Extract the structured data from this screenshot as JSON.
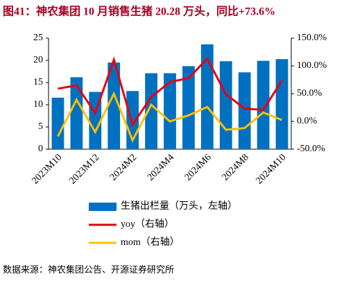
{
  "chart_data": {
    "type": "bar",
    "title": "图41：神农集团 10 月销售生猪 20.28 万头，同比+73.6%",
    "source": "数据来源：神农集团公告、开源证券研究所",
    "categories": [
      "2023M10",
      null,
      "2023M12",
      null,
      "2024M2",
      null,
      "2024M4",
      null,
      "2024M6",
      null,
      "2024M8",
      null,
      "2024M10"
    ],
    "series": [
      {
        "name": "生猪出栏量（万头，左轴）",
        "type": "bar",
        "axis": "y",
        "color": "#0070c0",
        "values": [
          11.6,
          16.2,
          12.9,
          19.5,
          13.1,
          17.1,
          17.1,
          18.7,
          23.6,
          19.8,
          17.3,
          19.9,
          20.28
        ]
      },
      {
        "name": "yoy（右轴）",
        "type": "line",
        "axis": "y2",
        "color": "#e60012",
        "values": [
          59,
          65,
          15,
          111,
          -6,
          44,
          71,
          78,
          113,
          49,
          23,
          21,
          73.6
        ]
      },
      {
        "name": "mom（右轴）",
        "type": "line",
        "axis": "y2",
        "color": "#ffc000",
        "values": [
          -27,
          39,
          -19,
          50,
          -34,
          30,
          0,
          11,
          26,
          -15,
          -12,
          16,
          2.5
        ]
      }
    ],
    "ylim": [
      0,
      25
    ],
    "yticks": [
      0,
      5,
      10,
      15,
      20,
      25
    ],
    "y2lim": [
      -50,
      150
    ],
    "y2ticks": [
      {
        "value": -50,
        "label": "-50.0%"
      },
      {
        "value": 0,
        "label": "0.0%"
      },
      {
        "value": 50,
        "label": "50.0%"
      },
      {
        "value": 100,
        "label": "100.0%"
      },
      {
        "value": 150,
        "label": "150.0%"
      }
    ]
  }
}
